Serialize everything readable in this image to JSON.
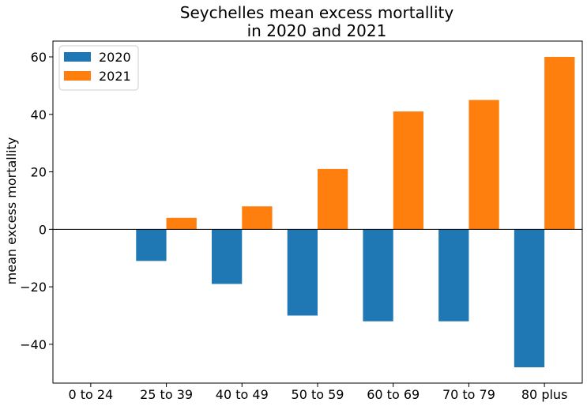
{
  "chart_data": {
    "type": "bar",
    "title_lines": [
      "Seychelles mean excess mortallity",
      "in 2020 and 2021"
    ],
    "xlabel": "",
    "ylabel": "mean excess mortallity",
    "categories": [
      "0 to 24",
      "25 to 39",
      "40 to 49",
      "50 to 59",
      "60 to 69",
      "70 to 79",
      "80 plus"
    ],
    "series": [
      {
        "name": "2020",
        "color": "#1f77b4",
        "values": [
          0,
          -11,
          -19,
          -30,
          -32,
          -32,
          -48
        ]
      },
      {
        "name": "2021",
        "color": "#ff7f0e",
        "values": [
          0,
          4,
          8,
          21,
          41,
          45,
          60
        ]
      }
    ],
    "ylim": [
      -53.5,
      65.5
    ],
    "yticks": [
      -40,
      -20,
      0,
      20,
      40,
      60
    ],
    "ytick_labels": [
      "−40",
      "−20",
      "0",
      "20",
      "40",
      "60"
    ],
    "zero_line": true,
    "grid": false,
    "legend_position": "top-left"
  }
}
